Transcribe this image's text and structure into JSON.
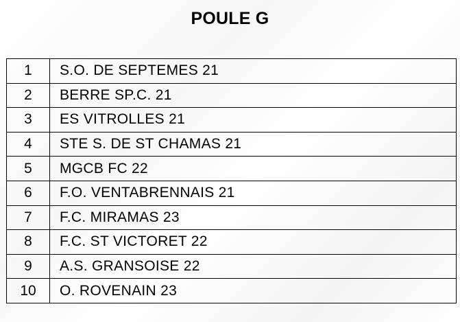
{
  "pool": {
    "title": "POULE G"
  },
  "teams": [
    {
      "rank": "1",
      "name": "S.O. DE SEPTEMES 21"
    },
    {
      "rank": "2",
      "name": "BERRE SP.C. 21"
    },
    {
      "rank": "3",
      "name": "ES VITROLLES 21"
    },
    {
      "rank": "4",
      "name": "STE S. DE ST CHAMAS 21"
    },
    {
      "rank": "5",
      "name": "MGCB FC 22"
    },
    {
      "rank": "6",
      "name": "F.O. VENTABRENNAIS 21"
    },
    {
      "rank": "7",
      "name": "F.C. MIRAMAS 23"
    },
    {
      "rank": "8",
      "name": "F.C. ST VICTORET 22"
    },
    {
      "rank": "9",
      "name": "A.S. GRANSOISE 22"
    },
    {
      "rank": "10",
      "name": "O. ROVENAIN 23"
    }
  ]
}
